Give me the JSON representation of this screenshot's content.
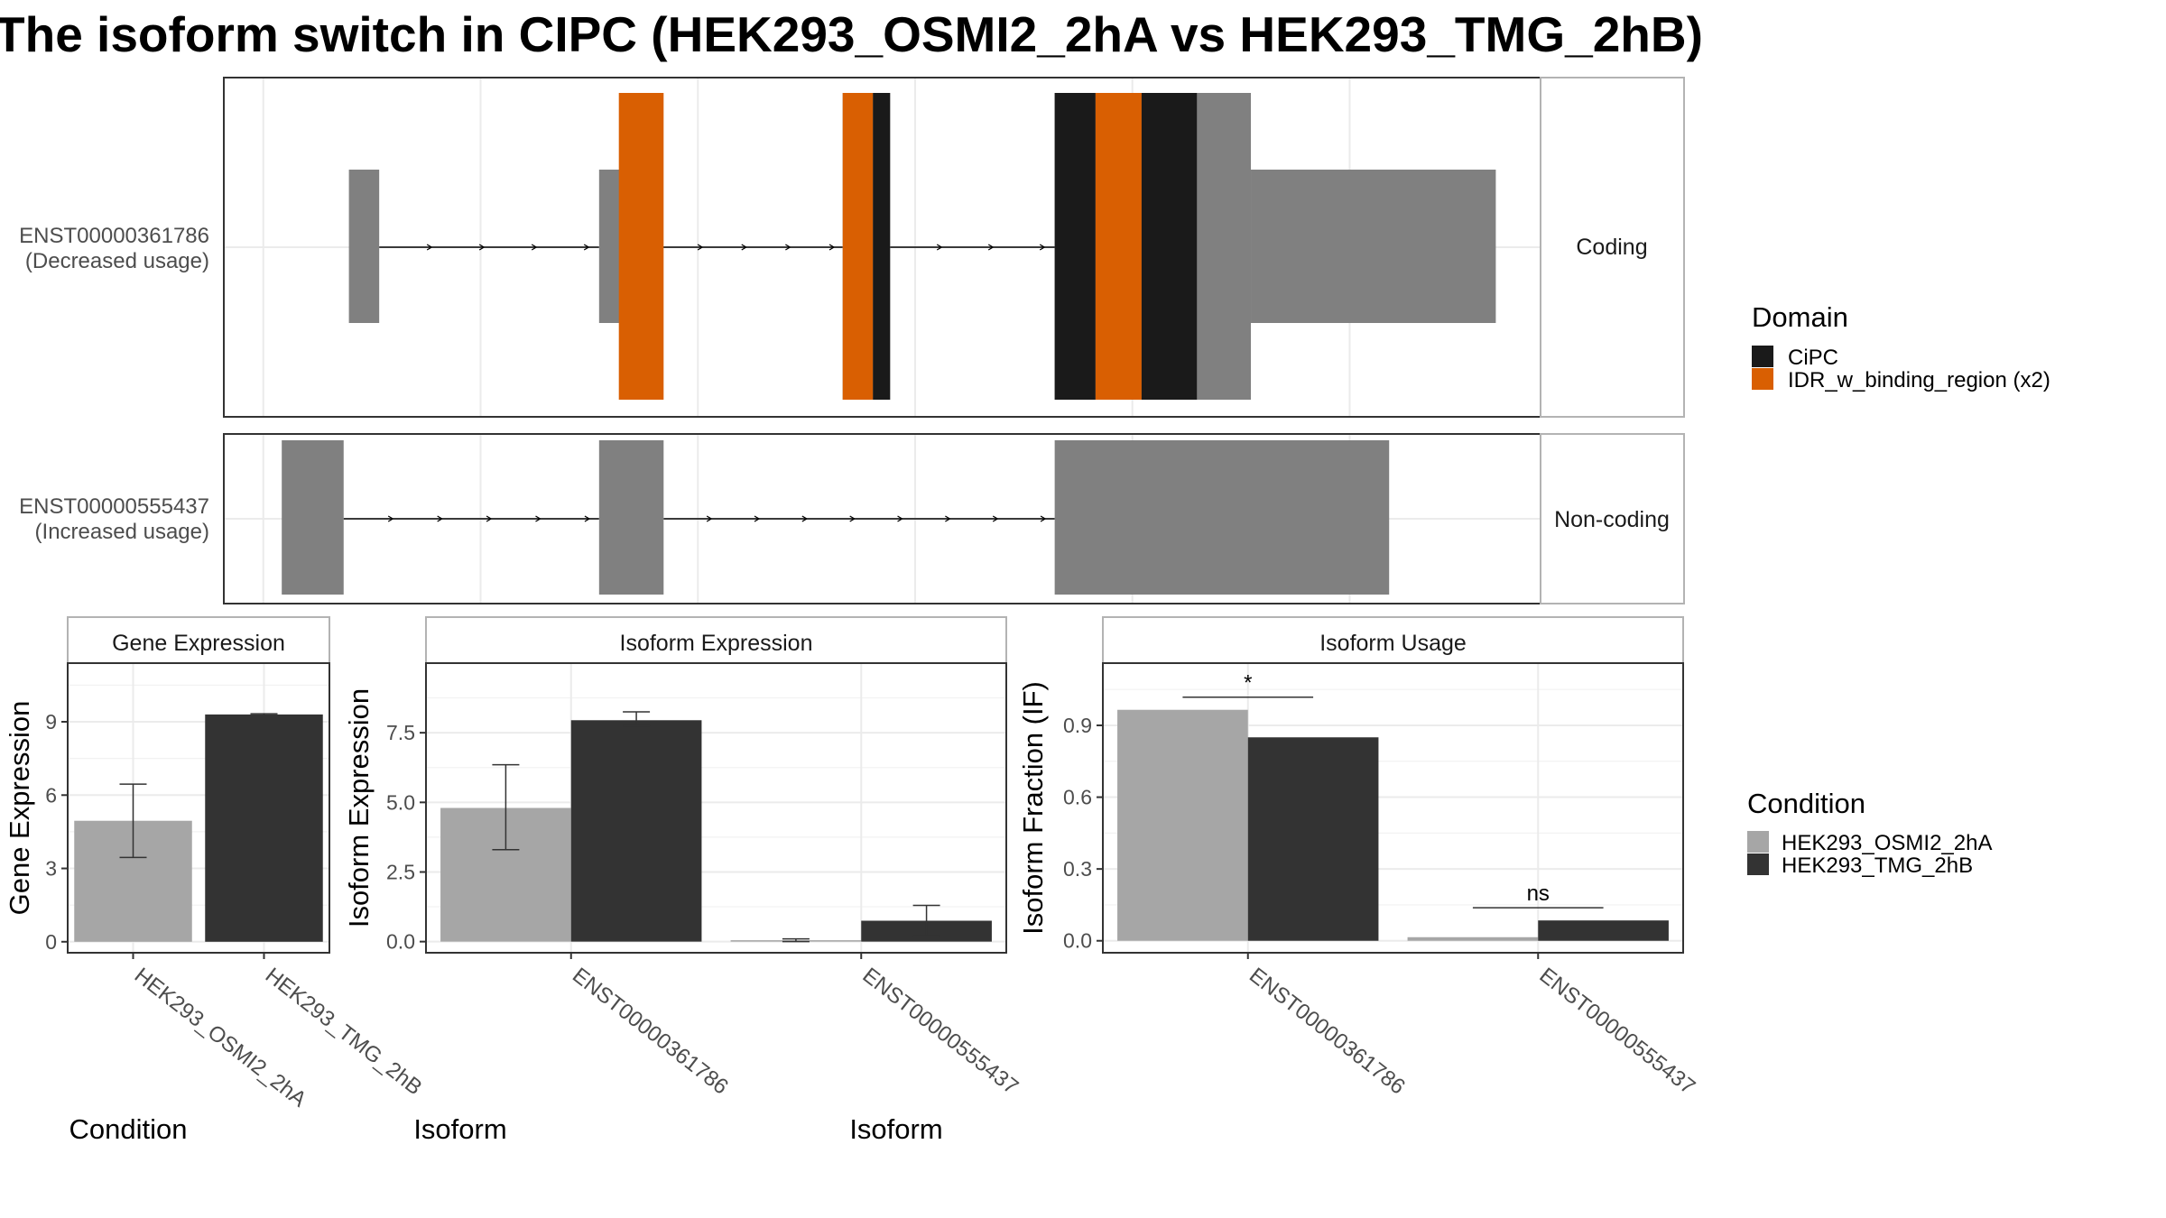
{
  "title": "The isoform switch in CIPC (HEK293_OSMI2_2hA vs HEK293_TMG_2hB)",
  "colors": {
    "gray_exon": "#808080",
    "domain_cipc": "#1a1a1a",
    "domain_idr": "#d95f02",
    "cond_a": "#a6a6a6",
    "cond_b": "#333333",
    "grid": "#ebebeb",
    "panel_border": "#333333",
    "strip_border": "#b3b3b3"
  },
  "transcripts": [
    {
      "id": "ENST00000361786",
      "usage": "(Decreased usage)",
      "strip": "Coding",
      "exons": [
        {
          "start": 0.095,
          "end": 0.118,
          "kind": "utr"
        },
        {
          "start": 0.285,
          "end": 0.307,
          "kind": "utr"
        },
        {
          "start": 0.307,
          "end": 0.33,
          "kind": "cds"
        },
        {
          "start": 0.47,
          "end": 0.506,
          "kind": "cds"
        },
        {
          "start": 0.631,
          "end": 0.78,
          "kind": "cds"
        },
        {
          "start": 0.78,
          "end": 0.966,
          "kind": "utr"
        }
      ],
      "domains": [
        {
          "name": "IDR_w_binding_region",
          "start": 0.3,
          "end": 0.334
        },
        {
          "name": "IDR_w_binding_region",
          "start": 0.47,
          "end": 0.493
        },
        {
          "name": "CiPC",
          "start": 0.493,
          "end": 0.506
        },
        {
          "name": "CiPC",
          "start": 0.631,
          "end": 0.662
        },
        {
          "name": "IDR_w_binding_region",
          "start": 0.662,
          "end": 0.697
        },
        {
          "name": "CiPC",
          "start": 0.697,
          "end": 0.739
        }
      ]
    },
    {
      "id": "ENST00000555437",
      "usage": "(Increased usage)",
      "strip": "Non-coding",
      "exons": [
        {
          "start": 0.044,
          "end": 0.091,
          "kind": "utr"
        },
        {
          "start": 0.285,
          "end": 0.334,
          "kind": "utr"
        },
        {
          "start": 0.631,
          "end": 0.885,
          "kind": "utr"
        }
      ],
      "domains": []
    }
  ],
  "legend_domain": {
    "title": "Domain",
    "entries": [
      "CiPC",
      "IDR_w_binding_region (x2)"
    ]
  },
  "legend_condition": {
    "title": "Condition",
    "entries": [
      "HEK293_OSMI2_2hA",
      "HEK293_TMG_2hB"
    ]
  },
  "chart_data": [
    {
      "type": "bar",
      "title": "Gene Expression",
      "xlabel": "Condition",
      "ylabel": "Gene Expression",
      "categories": [
        "HEK293_OSMI2_2hA",
        "HEK293_TMG_2hB"
      ],
      "values": [
        4.95,
        9.3
      ],
      "error_low": [
        3.45,
        9.27
      ],
      "error_high": [
        6.45,
        9.33
      ],
      "yticks": [
        "0",
        "3",
        "6",
        "9"
      ],
      "ylim": [
        -0.45,
        11.4
      ],
      "grid": true
    },
    {
      "type": "bar",
      "title": "Isoform Expression",
      "xlabel": "Isoform",
      "ylabel": "Isoform Expression",
      "categories": [
        "ENST00000361786",
        "ENST00000555437"
      ],
      "series": [
        {
          "name": "HEK293_OSMI2_2hA",
          "values": [
            4.8,
            0.05
          ],
          "error_low": [
            3.3,
            0.0
          ],
          "error_high": [
            6.35,
            0.1
          ]
        },
        {
          "name": "HEK293_TMG_2hB",
          "values": [
            7.95,
            0.75
          ],
          "error_low": [
            7.75,
            0.2
          ],
          "error_high": [
            8.25,
            1.3
          ]
        }
      ],
      "yticks": [
        "0.0",
        "2.5",
        "5.0",
        "7.5"
      ],
      "ylim": [
        -0.4,
        10.0
      ],
      "grid": true
    },
    {
      "type": "bar",
      "title": "Isoform Usage",
      "xlabel": "Isoform",
      "ylabel": "Isoform Fraction (IF)",
      "categories": [
        "ENST00000361786",
        "ENST00000555437"
      ],
      "series": [
        {
          "name": "HEK293_OSMI2_2hA",
          "values": [
            0.965,
            0.015
          ]
        },
        {
          "name": "HEK293_TMG_2hB",
          "values": [
            0.85,
            0.085
          ]
        }
      ],
      "yticks": [
        "0.0",
        "0.3",
        "0.6",
        "0.9"
      ],
      "ylim": [
        -0.05,
        1.16
      ],
      "significance": [
        "*",
        "ns"
      ],
      "grid": true
    }
  ]
}
